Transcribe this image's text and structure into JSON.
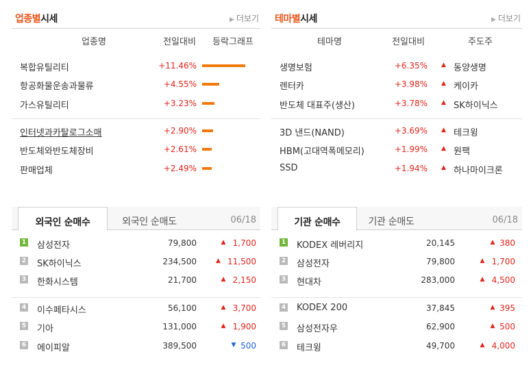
{
  "sector": {
    "title_accent": "업종별",
    "title_rest": "시세",
    "more": "더보기",
    "columns": [
      "업종명",
      "전일대비",
      "등락그래프"
    ],
    "rows": [
      {
        "name": "복합유틸리티",
        "rate": "+11.46%",
        "bar_pct": 11.46
      },
      {
        "name": "항공화물운송과물류",
        "rate": "+4.55%",
        "bar_pct": 4.55
      },
      {
        "name": "가스유틸리티",
        "rate": "+3.23%",
        "bar_pct": 3.23
      },
      {
        "name": "인터넷과카탈로그소매",
        "rate": "+2.90%",
        "bar_pct": 2.9
      },
      {
        "name": "반도체와반도체장비",
        "rate": "+2.61%",
        "bar_pct": 2.61
      },
      {
        "name": "판매업체",
        "rate": "+2.49%",
        "bar_pct": 2.49
      }
    ]
  },
  "theme": {
    "title_accent": "테마별",
    "title_rest": "시세",
    "more": "더보기",
    "columns": [
      "테마명",
      "전일대비",
      "주도주"
    ],
    "rows": [
      {
        "name": "생명보험",
        "rate": "+6.35%",
        "lead": "동양생명"
      },
      {
        "name": "렌터카",
        "rate": "+3.98%",
        "lead": "케이카"
      },
      {
        "name": "반도체 대표주(생산)",
        "rate": "+3.78%",
        "lead": "SK하이닉스"
      },
      {
        "name": "3D 낸드(NAND)",
        "rate": "+3.69%",
        "lead": "테크윙"
      },
      {
        "name": "HBM(고대역폭메모리)",
        "rate": "+1.99%",
        "lead": "원팩"
      },
      {
        "name": "SSD",
        "rate": "+1.94%",
        "lead": "하나마이크론"
      }
    ]
  },
  "foreign": {
    "tab_active": "외국인 순매수",
    "tab_inactive": "외국인 순매도",
    "date": "06/18",
    "rows": [
      {
        "rank": "1",
        "name": "삼성전자",
        "price": "79,800",
        "dir": "up",
        "change": "1,700"
      },
      {
        "rank": "2",
        "name": "SK하이닉스",
        "price": "234,500",
        "dir": "up",
        "change": "11,500"
      },
      {
        "rank": "3",
        "name": "한화시스템",
        "price": "21,700",
        "dir": "up",
        "change": "2,150"
      },
      {
        "rank": "4",
        "name": "이수페타시스",
        "price": "56,100",
        "dir": "up",
        "change": "3,700"
      },
      {
        "rank": "5",
        "name": "기아",
        "price": "131,000",
        "dir": "up",
        "change": "1,900"
      },
      {
        "rank": "6",
        "name": "에이피알",
        "price": "389,500",
        "dir": "down",
        "change": "500"
      }
    ]
  },
  "institution": {
    "tab_active": "기관 순매수",
    "tab_inactive": "기관 순매도",
    "date": "06/18",
    "rows": [
      {
        "rank": "1",
        "name": "KODEX 레버리지",
        "price": "20,145",
        "dir": "up",
        "change": "380"
      },
      {
        "rank": "2",
        "name": "삼성전자",
        "price": "79,800",
        "dir": "up",
        "change": "1,700"
      },
      {
        "rank": "3",
        "name": "현대차",
        "price": "283,000",
        "dir": "up",
        "change": "4,500"
      },
      {
        "rank": "4",
        "name": "KODEX 200",
        "price": "37,845",
        "dir": "up",
        "change": "395"
      },
      {
        "rank": "5",
        "name": "삼성전자우",
        "price": "62,900",
        "dir": "up",
        "change": "500"
      },
      {
        "rank": "6",
        "name": "테크윙",
        "price": "49,700",
        "dir": "up",
        "change": "4,000"
      }
    ]
  },
  "icons": {
    "more": "chevron-right-icon",
    "up": "triangle-up-icon",
    "down": "triangle-down-icon"
  },
  "colors": {
    "accent": "#e8551b",
    "up": "#e2231a",
    "down": "#1e64d2",
    "bar": "#f2790a",
    "rank_top": "#72b63a",
    "rank_other": "#b9b9b9"
  }
}
